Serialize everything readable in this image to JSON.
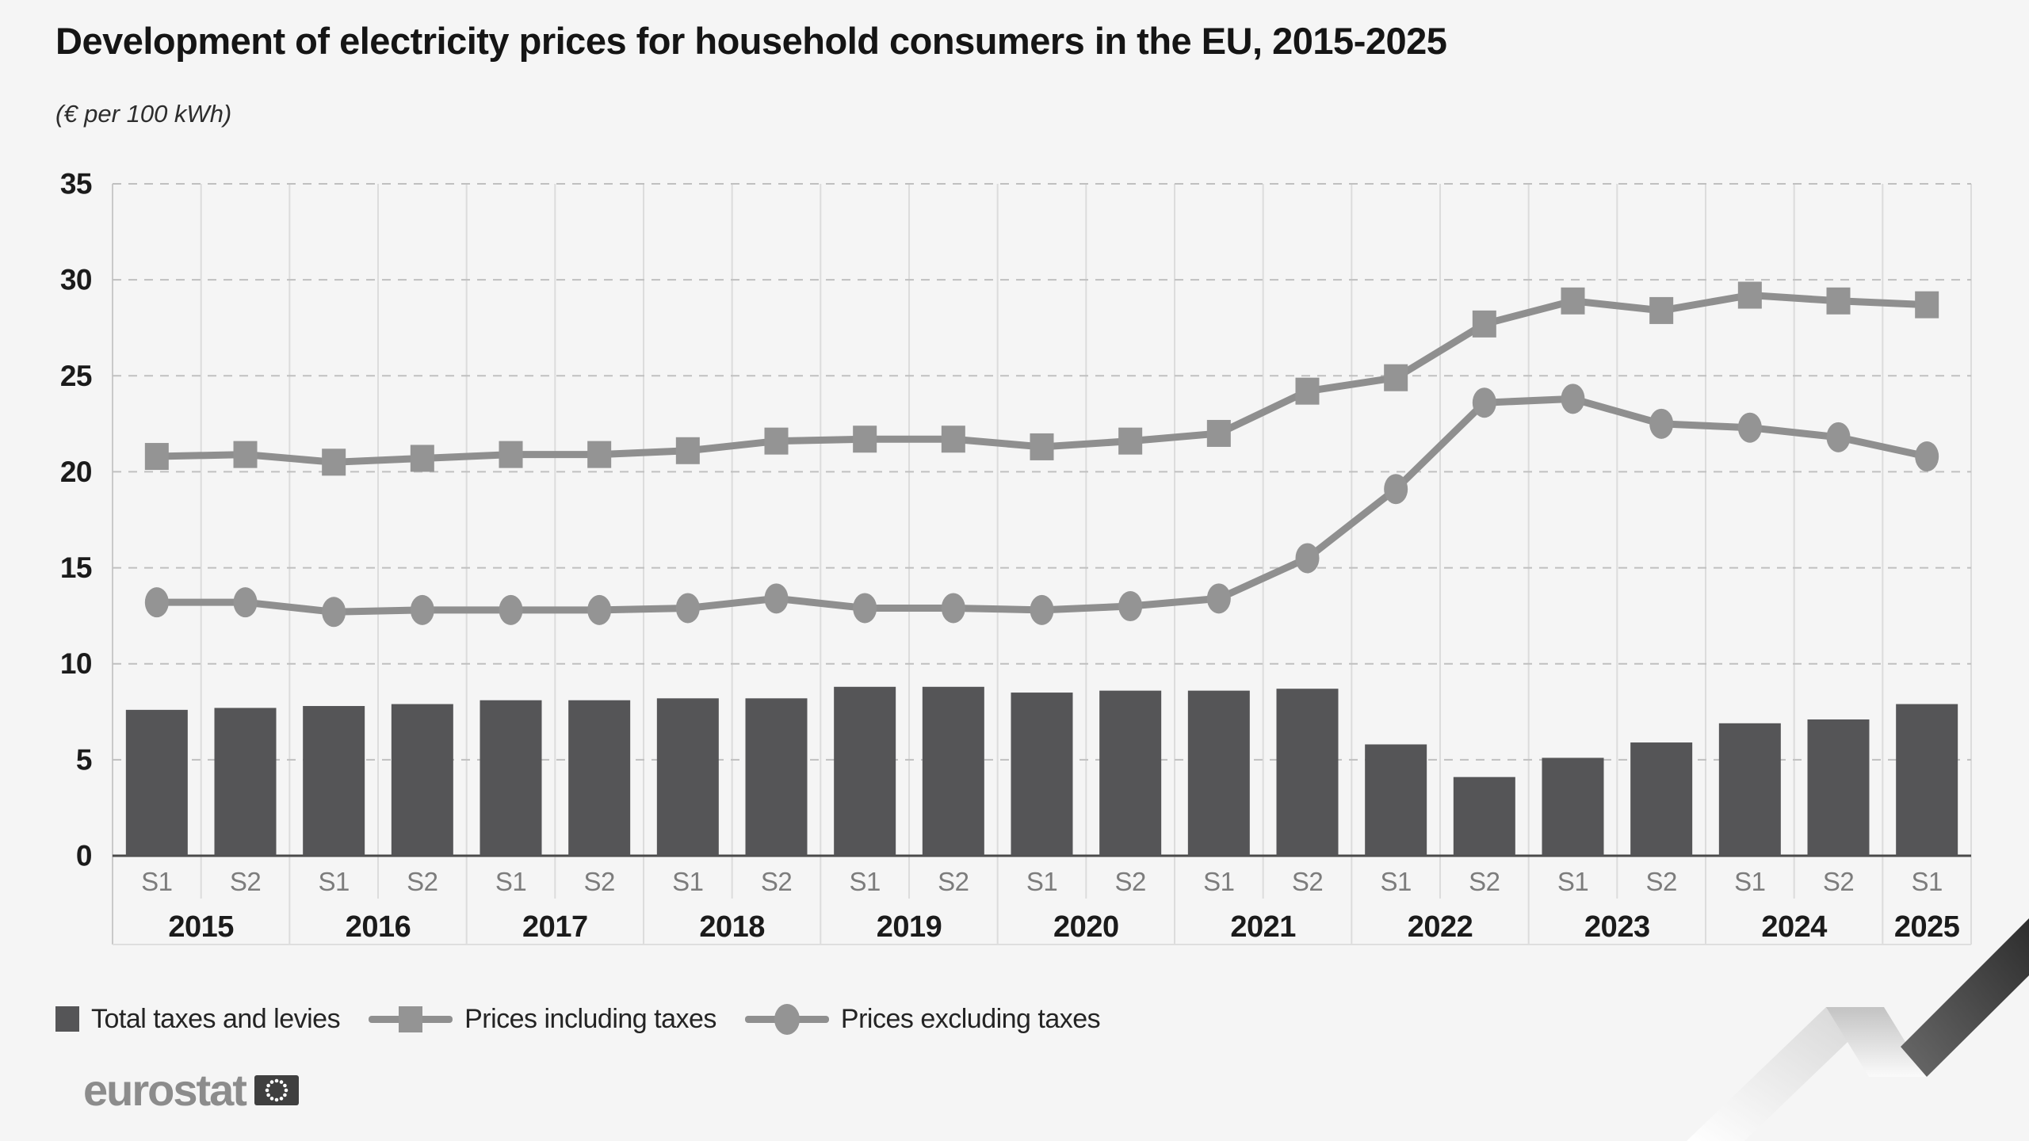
{
  "title": "Development of electricity prices for household consumers in the EU, 2015-2025",
  "subtitle": "(€ per 100 kWh)",
  "footer": {
    "logo_text": "eurostat"
  },
  "colors": {
    "bar": "#555557",
    "line": "#8f8f8f",
    "marker": "#949494",
    "background": "#f5f5f5",
    "grid_dashed": "#c0c0c0",
    "grid_vertical": "#dcdcdc",
    "axis_baseline": "#4a4a4a",
    "text_dark": "#1b1b1b",
    "text_muted": "#7c7c7c"
  },
  "chart_data": {
    "type": "bar+line",
    "title": "Development of electricity prices for household consumers in the EU, 2015-2025",
    "unit": "€ per 100 kWh",
    "ylim": [
      0,
      35
    ],
    "y_ticks": [
      0,
      5,
      10,
      15,
      20,
      25,
      30,
      35
    ],
    "grid": "horizontal dashed + vertical solid",
    "legend_position": "bottom-left",
    "periods": [
      {
        "year": "2015",
        "half": "S1"
      },
      {
        "year": "2015",
        "half": "S2"
      },
      {
        "year": "2016",
        "half": "S1"
      },
      {
        "year": "2016",
        "half": "S2"
      },
      {
        "year": "2017",
        "half": "S1"
      },
      {
        "year": "2017",
        "half": "S2"
      },
      {
        "year": "2018",
        "half": "S1"
      },
      {
        "year": "2018",
        "half": "S2"
      },
      {
        "year": "2019",
        "half": "S1"
      },
      {
        "year": "2019",
        "half": "S2"
      },
      {
        "year": "2020",
        "half": "S1"
      },
      {
        "year": "2020",
        "half": "S2"
      },
      {
        "year": "2021",
        "half": "S1"
      },
      {
        "year": "2021",
        "half": "S2"
      },
      {
        "year": "2022",
        "half": "S1"
      },
      {
        "year": "2022",
        "half": "S2"
      },
      {
        "year": "2023",
        "half": "S1"
      },
      {
        "year": "2023",
        "half": "S2"
      },
      {
        "year": "2024",
        "half": "S1"
      },
      {
        "year": "2024",
        "half": "S2"
      },
      {
        "year": "2025",
        "half": "S1"
      }
    ],
    "series": [
      {
        "name": "Total taxes and levies",
        "type": "bar",
        "values": [
          7.6,
          7.7,
          7.8,
          7.9,
          8.1,
          8.1,
          8.2,
          8.2,
          8.8,
          8.8,
          8.5,
          8.6,
          8.6,
          8.7,
          5.8,
          4.1,
          5.1,
          5.9,
          6.9,
          7.1,
          7.9
        ]
      },
      {
        "name": "Prices including taxes",
        "type": "line",
        "marker": "square",
        "values": [
          20.8,
          20.9,
          20.5,
          20.7,
          20.9,
          20.9,
          21.1,
          21.6,
          21.7,
          21.7,
          21.3,
          21.6,
          22.0,
          24.2,
          24.9,
          27.7,
          28.9,
          28.4,
          29.2,
          28.9,
          28.7
        ]
      },
      {
        "name": "Prices excluding taxes",
        "type": "line",
        "marker": "circle",
        "values": [
          13.2,
          13.2,
          12.7,
          12.8,
          12.8,
          12.8,
          12.9,
          13.4,
          12.9,
          12.9,
          12.8,
          13.0,
          13.4,
          15.5,
          19.1,
          23.6,
          23.8,
          22.5,
          22.3,
          21.8,
          20.8
        ]
      }
    ]
  }
}
